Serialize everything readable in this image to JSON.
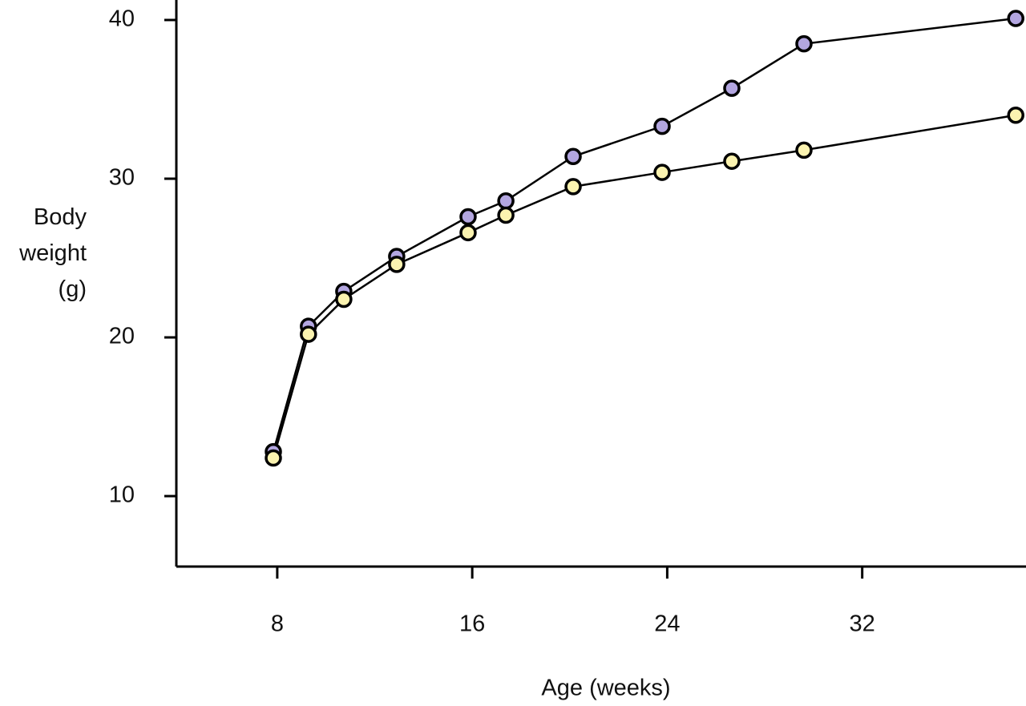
{
  "chart_data": {
    "type": "line",
    "x_label": "Age (weeks)",
    "y_label": "Body weight (g)",
    "x": [
      7.84,
      9.28,
      10.73,
      12.9,
      15.83,
      17.38,
      20.14,
      23.79,
      26.65,
      29.61,
      38.3
    ],
    "series": [
      {
        "color": "#b3a6e0",
        "values": [
          12.8,
          20.7,
          22.9,
          25.1,
          27.6,
          28.6,
          31.4,
          33.3,
          35.7,
          38.5,
          40.1
        ]
      },
      {
        "color": "#fbf3b0",
        "values": [
          12.4,
          20.2,
          22.4,
          24.6,
          26.6,
          27.7,
          29.5,
          30.4,
          31.1,
          31.8,
          34.0
        ]
      }
    ],
    "xlim": [
      3.86,
      38.72
    ],
    "xticks": [
      8,
      16,
      24,
      32
    ],
    "ylim": [
      5.56,
      41.26
    ],
    "yticks": [
      10,
      20,
      30,
      40
    ],
    "grid": false
  }
}
